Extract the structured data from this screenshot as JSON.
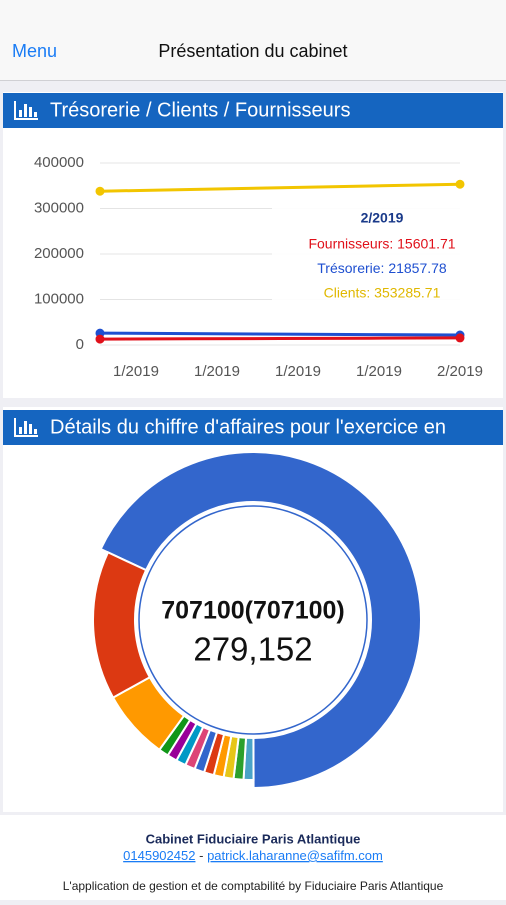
{
  "nav": {
    "menu": "Menu",
    "title": "Présentation du cabinet"
  },
  "chart_data": [
    {
      "type": "line",
      "title": "Trésorerie / Clients / Fournisseurs",
      "categories": [
        "1/2019",
        "1/2019",
        "1/2019",
        "1/2019",
        "2/2019"
      ],
      "series": [
        {
          "color": "#f2c500",
          "values": [
            338000,
            341800,
            345600,
            349400,
            353285.71
          ]
        },
        {
          "color": "#1e4fd0",
          "values": [
            26000,
            25000,
            23900,
            22900,
            21857.78
          ]
        },
        {
          "color": "#e0101a",
          "values": [
            13000,
            13650,
            14300,
            14950,
            15601.71
          ]
        }
      ],
      "ylim": [
        0,
        400000
      ],
      "yticks": [
        0,
        100000,
        200000,
        300000,
        400000
      ],
      "grid": true,
      "tooltip": {
        "title": "2/2019",
        "items": [
          {
            "text": "Fournisseurs: 15601.71",
            "color": "#e0101a"
          },
          {
            "text": "Trésorerie: 21857.78",
            "color": "#1e4fd0"
          },
          {
            "text": "Clients: 353285.71",
            "color": "#e0b800"
          }
        ]
      }
    },
    {
      "type": "pie",
      "title": "Détails du chiffre d'affaires pour l'exercice en",
      "values": [
        68,
        1,
        1,
        1,
        1,
        1,
        1,
        1,
        1,
        1,
        1,
        7,
        15
      ],
      "colors": [
        "#3366cc",
        "#4aa3c8",
        "#2ca02c",
        "#e6c619",
        "#ff9900",
        "#dc3912",
        "#3366cc",
        "#dd4477",
        "#0099c6",
        "#990099",
        "#109618",
        "#ff9900",
        "#dc3912"
      ],
      "center_title": "707100(707100)",
      "center_label": "279,152"
    }
  ],
  "footer": {
    "company": "Cabinet Fiduciaire Paris Atlantique",
    "phone": "0145902452",
    "separator": "-",
    "email": "patrick.laharanne@safifm.com",
    "credit": "L'application de gestion et de comptabilité by Fiduciaire Paris Atlantique"
  }
}
